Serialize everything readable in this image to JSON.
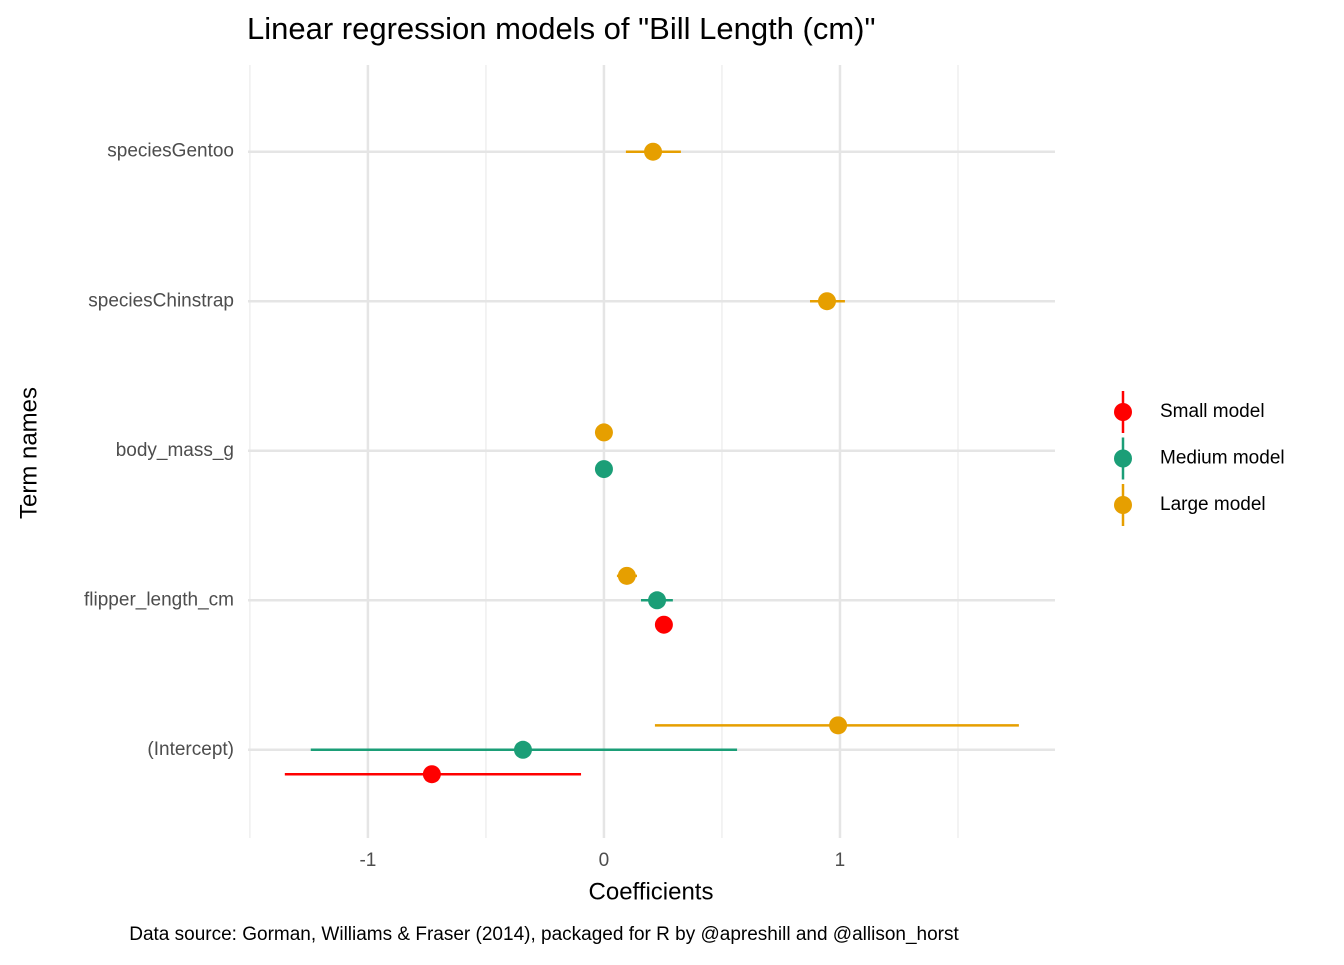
{
  "chart_data": {
    "type": "dotwhisker",
    "title": "Linear regression models of \"Bill Length (cm)\"",
    "x_label": "Coefficients",
    "y_label": "Term names",
    "caption": "Data source: Gorman, Williams & Fraser (2014), packaged for R by @apreshill and @allison_horst",
    "categories": [
      "(Intercept)",
      "flipper_length_cm",
      "body_mass_g",
      "speciesChinstrap",
      "speciesGentoo"
    ],
    "series": [
      {
        "name": "Small model",
        "color": "#ff0000",
        "values": [
          -0.729,
          0.254,
          null,
          null,
          null
        ],
        "lower": [
          -1.352,
          0.246,
          null,
          null,
          null
        ],
        "upper": [
          -0.097,
          0.262,
          null,
          null,
          null
        ]
      },
      {
        "name": "Medium model",
        "color": "#1b9e77",
        "values": [
          -0.343,
          0.225,
          0.0,
          null,
          null
        ],
        "lower": [
          -1.242,
          0.157,
          0.0,
          null,
          null
        ],
        "upper": [
          0.564,
          0.292,
          0.0,
          null,
          null
        ]
      },
      {
        "name": "Large model",
        "color": "#e69f00",
        "values": [
          0.992,
          0.097,
          0.0,
          0.945,
          0.208
        ],
        "lower": [
          0.216,
          0.055,
          0.0,
          0.873,
          0.093
        ],
        "upper": [
          1.758,
          0.14,
          0.0,
          1.021,
          0.326
        ]
      }
    ],
    "xlim": [
      -1.508,
      1.911
    ],
    "xticks": [
      -1,
      0,
      1
    ],
    "x_minor_grid": [
      -1.5,
      -0.5,
      0.5,
      1.5
    ],
    "grid": true,
    "legend": "right"
  }
}
